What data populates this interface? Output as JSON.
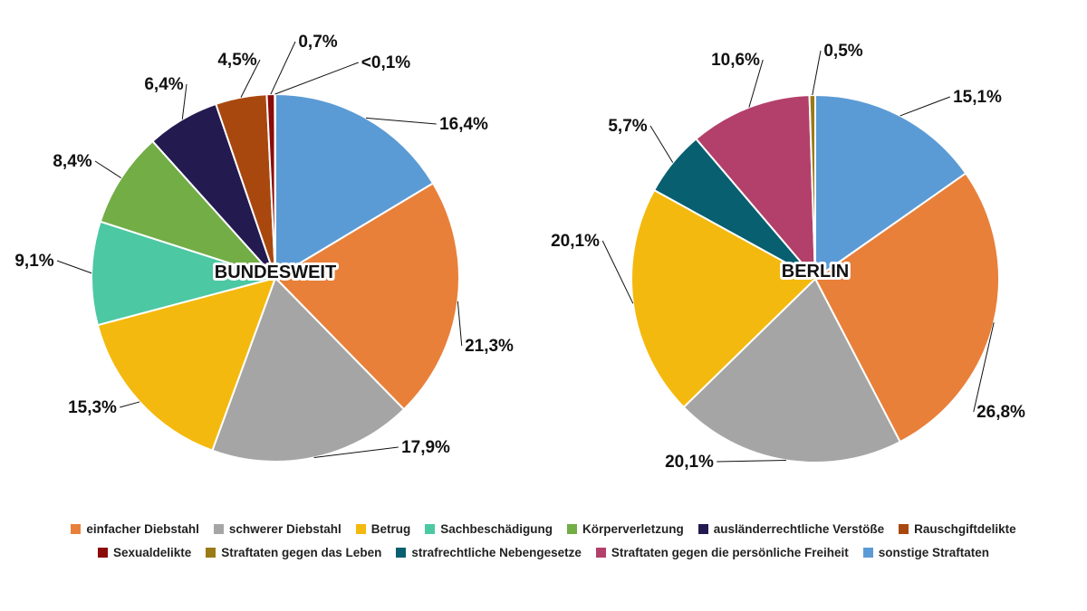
{
  "chart_data": [
    {
      "type": "pie",
      "title": "BUNDESWEIT",
      "slices": [
        {
          "category": "sonstige Straftaten",
          "value": 16.4,
          "label": "16,4%"
        },
        {
          "category": "einfacher Diebstahl",
          "value": 21.3,
          "label": "21,3%"
        },
        {
          "category": "schwerer Diebstahl",
          "value": 17.9,
          "label": "17,9%"
        },
        {
          "category": "Betrug",
          "value": 15.3,
          "label": "15,3%"
        },
        {
          "category": "Sachbeschädigung",
          "value": 9.1,
          "label": "9,1%"
        },
        {
          "category": "Körperverletzung",
          "value": 8.4,
          "label": "8,4%"
        },
        {
          "category": "ausländerrechtliche Verstöße",
          "value": 6.4,
          "label": "6,4%"
        },
        {
          "category": "Rauschgiftdelikte",
          "value": 4.5,
          "label": "4,5%"
        },
        {
          "category": "Sexualdelikte",
          "value": 0.7,
          "label": "0,7%"
        },
        {
          "category": "Straftaten gegen das Leben",
          "value": 0.05,
          "label": "<0,1%"
        }
      ]
    },
    {
      "type": "pie",
      "title": "BERLIN",
      "slices": [
        {
          "category": "sonstige Straftaten",
          "value": 15.1,
          "label": "15,1%"
        },
        {
          "category": "einfacher Diebstahl",
          "value": 26.8,
          "label": "26,8%"
        },
        {
          "category": "schwerer Diebstahl",
          "value": 20.1,
          "label": "20,1%"
        },
        {
          "category": "Betrug",
          "value": 20.1,
          "label": "20,1%"
        },
        {
          "category": "strafrechtliche Nebengesetze",
          "value": 5.7,
          "label": "5,7%"
        },
        {
          "category": "Straftaten gegen die persönliche Freiheit",
          "value": 10.6,
          "label": "10,6%"
        },
        {
          "category": "Straftaten gegen das Leben",
          "value": 0.5,
          "label": "0,5%"
        }
      ]
    }
  ],
  "legend": {
    "rows": [
      [
        {
          "label": "einfacher Diebstahl",
          "color": "#E8803A"
        },
        {
          "label": "schwerer Diebstahl",
          "color": "#A5A5A5"
        },
        {
          "label": "Betrug",
          "color": "#F4B90E"
        },
        {
          "label": "Sachbeschädigung",
          "color": "#4CC8A3"
        },
        {
          "label": "Körperverletzung",
          "color": "#72AD46"
        },
        {
          "label": "ausländerrechtliche Verstöße",
          "color": "#231A50"
        },
        {
          "label": "Rauschgiftdelikte",
          "color": "#A8480F"
        }
      ],
      [
        {
          "label": "Sexualdelikte",
          "color": "#8B0A0A"
        },
        {
          "label": "Straftaten gegen das Leben",
          "color": "#9A7A16"
        },
        {
          "label": "strafrechtliche Nebengesetze",
          "color": "#075F70"
        },
        {
          "label": "Straftaten gegen die persönliche Freiheit",
          "color": "#B2406A"
        },
        {
          "label": "sonstige Straftaten",
          "color": "#5B9BD5"
        }
      ]
    ]
  }
}
